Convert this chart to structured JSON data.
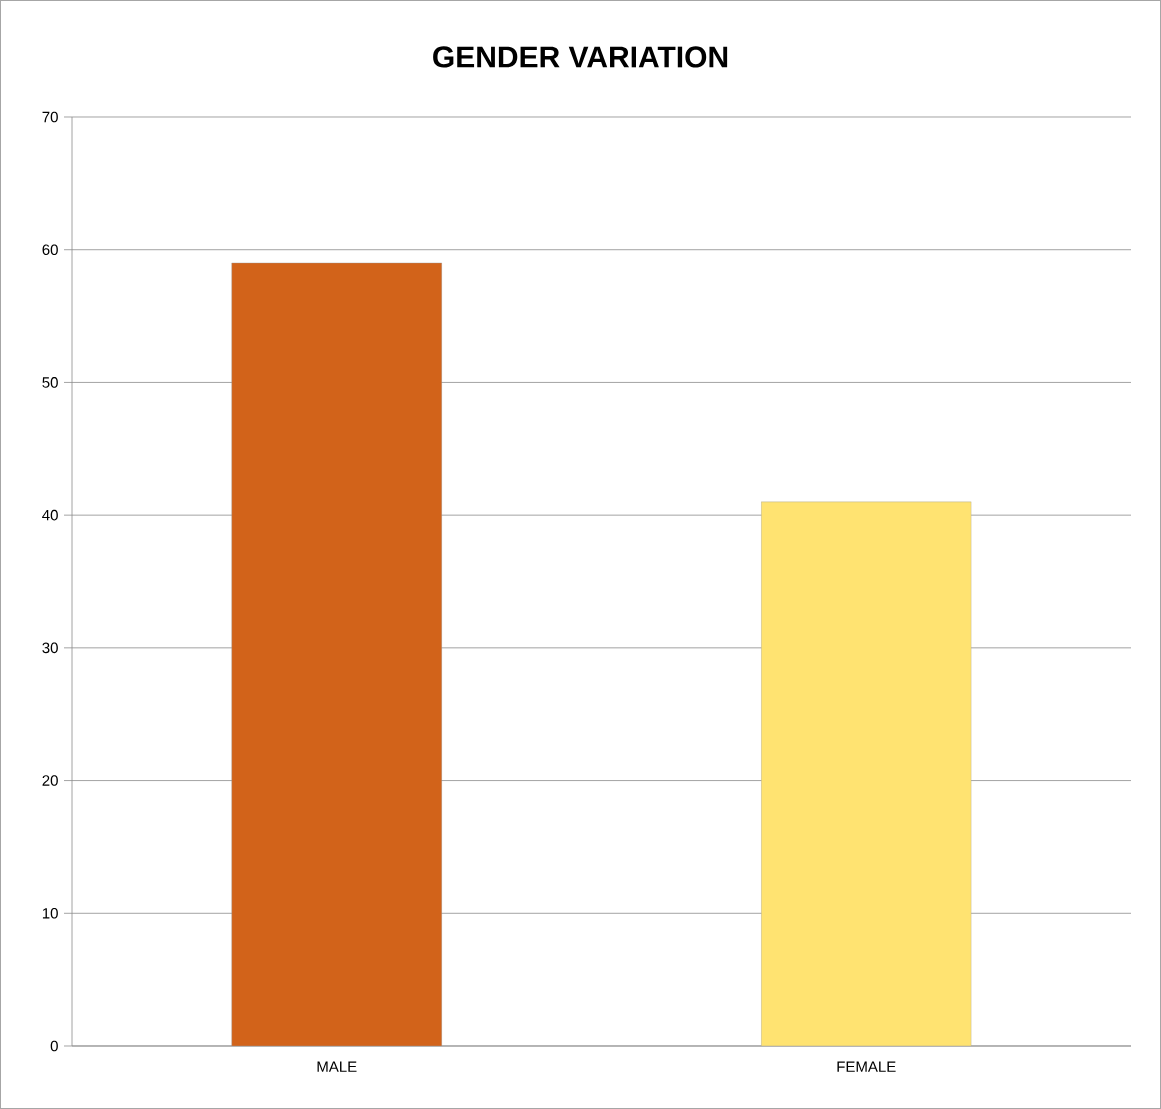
{
  "chart_data": {
    "type": "bar",
    "title": "GENDER VARIATION",
    "categories": [
      "MALE",
      "FEMALE"
    ],
    "values": [
      59,
      41
    ],
    "colors": [
      "#d2631a",
      "#ffe371"
    ],
    "ylim": [
      0,
      70
    ],
    "yticks": [
      0,
      10,
      20,
      30,
      40,
      50,
      60,
      70
    ],
    "grid": "y"
  }
}
